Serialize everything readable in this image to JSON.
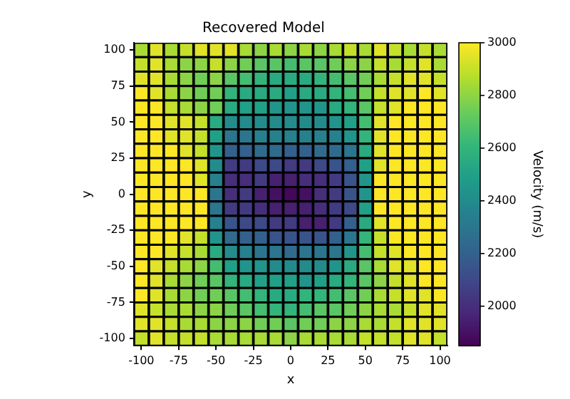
{
  "chart_data": {
    "type": "scatter",
    "title": "Recovered Model",
    "xlabel": "x",
    "ylabel": "y",
    "clabel": "Velocity (m/s)",
    "marker": "square",
    "xlim": [
      -105,
      105
    ],
    "xticks": [
      -100,
      -75,
      -50,
      -25,
      0,
      25,
      50,
      75,
      100
    ],
    "ylim": [
      -105,
      105
    ],
    "yticks": [
      -100,
      -75,
      -50,
      -25,
      0,
      25,
      50,
      75,
      100
    ],
    "clim": [
      1850,
      3000
    ],
    "cticks": [
      2000,
      2200,
      2400,
      2600,
      2800,
      3000
    ],
    "x": [
      -100,
      -90,
      -80,
      -70,
      -60,
      -50,
      -40,
      -30,
      -20,
      -10,
      0,
      10,
      20,
      30,
      40,
      50,
      60,
      70,
      80,
      90,
      100,
      -100,
      -90,
      -80,
      -70,
      -60,
      -50,
      -40,
      -30,
      -20,
      -10,
      0,
      10,
      20,
      30,
      40,
      50,
      60,
      70,
      80,
      90,
      100,
      -100,
      -90,
      -80,
      -70,
      -60,
      -50,
      -40,
      -30,
      -20,
      -10,
      0,
      10,
      20,
      30,
      40,
      50,
      60,
      70,
      80,
      90,
      100,
      -100,
      -90,
      -80,
      -70,
      -60,
      -50,
      -40,
      -30,
      -20,
      -10,
      0,
      10,
      20,
      30,
      40,
      50,
      60,
      70,
      80,
      90,
      100,
      -100,
      -90,
      -80,
      -70,
      -60,
      -50,
      -40,
      -30,
      -20,
      -10,
      0,
      10,
      20,
      30,
      40,
      50,
      60,
      70,
      80,
      90,
      100,
      -100,
      -90,
      -80,
      -70,
      -60,
      -50,
      -40,
      -30,
      -20,
      -10,
      0,
      10,
      20,
      30,
      40,
      50,
      60,
      70,
      80,
      90,
      100,
      -100,
      -90,
      -80,
      -70,
      -60,
      -50,
      -40,
      -30,
      -20,
      -10,
      0,
      10,
      20,
      30,
      40,
      50,
      60,
      70,
      80,
      90,
      100,
      -100,
      -90,
      -80,
      -70,
      -60,
      -50,
      -40,
      -30,
      -20,
      -10,
      0,
      10,
      20,
      30,
      40,
      50,
      60,
      70,
      80,
      90,
      100,
      -100,
      -90,
      -80,
      -70,
      -60,
      -50,
      -40,
      -30,
      -20,
      -10,
      0,
      10,
      20,
      30,
      40,
      50,
      60,
      70,
      80,
      90,
      100,
      -100,
      -90,
      -80,
      -70,
      -60,
      -50,
      -40,
      -30,
      -20,
      -10,
      0,
      10,
      20,
      30,
      40,
      50,
      60,
      70,
      80,
      90,
      100,
      -100,
      -90,
      -80,
      -70,
      -60,
      -50,
      -40,
      -30,
      -20,
      -10,
      0,
      10,
      20,
      30,
      40,
      50,
      60,
      70,
      80,
      90,
      100,
      -100,
      -90,
      -80,
      -70,
      -60,
      -50,
      -40,
      -30,
      -20,
      -10,
      0,
      10,
      20,
      30,
      40,
      50,
      60,
      70,
      80,
      90,
      100,
      -100,
      -90,
      -80,
      -70,
      -60,
      -50,
      -40,
      -30,
      -20,
      -10,
      0,
      10,
      20,
      30,
      40,
      50,
      60,
      70,
      80,
      90,
      100,
      -100,
      -90,
      -80,
      -70,
      -60,
      -50,
      -40,
      -30,
      -20,
      -10,
      0,
      10,
      20,
      30,
      40,
      50,
      60,
      70,
      80,
      90,
      100,
      -100,
      -90,
      -80,
      -70,
      -60,
      -50,
      -40,
      -30,
      -20,
      -10,
      0,
      10,
      20,
      30,
      40,
      50,
      60,
      70,
      80,
      90,
      100,
      -100,
      -90,
      -80,
      -70,
      -60,
      -50,
      -40,
      -30,
      -20,
      -10,
      0,
      10,
      20,
      30,
      40,
      50,
      60,
      70,
      80,
      90,
      100,
      -100,
      -90,
      -80,
      -70,
      -60,
      -50,
      -40,
      -30,
      -20,
      -10,
      0,
      10,
      20,
      30,
      40,
      50,
      60,
      70,
      80,
      90,
      100,
      -100,
      -90,
      -80,
      -70,
      -60,
      -50,
      -40,
      -30,
      -20,
      -10,
      0,
      10,
      20,
      30,
      40,
      50,
      60,
      70,
      80,
      90,
      100,
      -100,
      -90,
      -80,
      -70,
      -60,
      -50,
      -40,
      -30,
      -20,
      -10,
      0,
      10,
      20,
      30,
      40,
      50,
      60,
      70,
      80,
      90,
      100,
      -100,
      -90,
      -80,
      -70,
      -60,
      -50,
      -40,
      -30,
      -20,
      -10,
      0,
      10,
      20,
      30,
      40,
      50,
      60,
      70,
      80,
      90,
      100,
      -100,
      -90,
      -80,
      -70,
      -60,
      -50,
      -40,
      -30,
      -20,
      -10,
      0,
      10,
      20,
      30,
      40,
      50,
      60,
      70,
      80,
      90,
      100
    ],
    "values": [
      100,
      100,
      100,
      100,
      100,
      100,
      100,
      100,
      100,
      100,
      100,
      100,
      100,
      100,
      100,
      100,
      100,
      100,
      100,
      100,
      100,
      90,
      90,
      90,
      90,
      90,
      90,
      90,
      90,
      90,
      90,
      90,
      90,
      90,
      90,
      90,
      90,
      90,
      90,
      90,
      90,
      90,
      80,
      80,
      80,
      80,
      80,
      80,
      80,
      80,
      80,
      80,
      80,
      80,
      80,
      80,
      80,
      80,
      80,
      80,
      80,
      80,
      80,
      70,
      70,
      70,
      70,
      70,
      70,
      70,
      70,
      70,
      70,
      70,
      70,
      70,
      70,
      70,
      70,
      70,
      70,
      70,
      70,
      70,
      60,
      60,
      60,
      60,
      60,
      60,
      60,
      60,
      60,
      60,
      60,
      60,
      60,
      60,
      60,
      60,
      60,
      60,
      60,
      60,
      60,
      50,
      50,
      50,
      50,
      50,
      50,
      50,
      50,
      50,
      50,
      50,
      50,
      50,
      50,
      50,
      50,
      50,
      50,
      50,
      50,
      50,
      40,
      40,
      40,
      40,
      40,
      40,
      40,
      40,
      40,
      40,
      40,
      40,
      40,
      40,
      40,
      40,
      40,
      40,
      40,
      40,
      40,
      30,
      30,
      30,
      30,
      30,
      30,
      30,
      30,
      30,
      30,
      30,
      30,
      30,
      30,
      30,
      30,
      30,
      30,
      30,
      30,
      30,
      20,
      20,
      20,
      20,
      20,
      20,
      20,
      20,
      20,
      20,
      20,
      20,
      20,
      20,
      20,
      20,
      20,
      20,
      20,
      20,
      20,
      10,
      10,
      10,
      10,
      10,
      10,
      10,
      10,
      10,
      10,
      10,
      10,
      10,
      10,
      10,
      10,
      10,
      10,
      10,
      10,
      10,
      0,
      0,
      0,
      0,
      0,
      0,
      0,
      0,
      0,
      0,
      0,
      0,
      0,
      0,
      0,
      0,
      0,
      0,
      0,
      0,
      0,
      -10,
      -10,
      -10,
      -10,
      -10,
      -10,
      -10,
      -10,
      -10,
      -10,
      -10,
      -10,
      -10,
      -10,
      -10,
      -10,
      -10,
      -10,
      -10,
      -10,
      -10,
      -20,
      -20,
      -20,
      -20,
      -20,
      -20,
      -20,
      -20,
      -20,
      -20,
      -20,
      -20,
      -20,
      -20,
      -20,
      -20,
      -20,
      -20,
      -20,
      -20,
      -20,
      -30,
      -30,
      -30,
      -30,
      -30,
      -30,
      -30,
      -30,
      -30,
      -30,
      -30,
      -30,
      -30,
      -30,
      -30,
      -30,
      -30,
      -30,
      -30,
      -30,
      -30,
      -40,
      -40,
      -40,
      -40,
      -40,
      -40,
      -40,
      -40,
      -40,
      -40,
      -40,
      -40,
      -40,
      -40,
      -40,
      -40,
      -40,
      -40,
      -40,
      -40,
      -40,
      -50,
      -50,
      -50,
      -50,
      -50,
      -50,
      -50,
      -50,
      -50,
      -50,
      -50,
      -50,
      -50,
      -50,
      -50,
      -50,
      -50,
      -50,
      -50,
      -50,
      -50,
      -60,
      -60,
      -60,
      -60,
      -60,
      -60,
      -60,
      -60,
      -60,
      -60,
      -60,
      -60,
      -60,
      -60,
      -60,
      -60,
      -60,
      -60,
      -60,
      -60,
      -60,
      -70,
      -70,
      -70,
      -70,
      -70,
      -70,
      -70,
      -70,
      -70,
      -70,
      -70,
      -70,
      -70,
      -70,
      -70,
      -70,
      -70,
      -70,
      -70,
      -70,
      -70,
      -80,
      -80,
      -80,
      -80,
      -80,
      -80,
      -80,
      -80,
      -80,
      -80,
      -80,
      -80,
      -80,
      -80,
      -80,
      -80,
      -80,
      -80,
      -80,
      -80,
      -80,
      -90,
      -90,
      -90,
      -90,
      -90,
      -90,
      -90,
      -90,
      -90,
      -90,
      -90,
      -90,
      -90,
      -90,
      -90,
      -90,
      -90,
      -90,
      -90,
      -90,
      -90,
      -100,
      -100,
      -100,
      -100,
      -100,
      -100,
      -100,
      -100,
      -100,
      -100,
      -100,
      -100,
      -100,
      -100,
      -100,
      -100,
      -100,
      -100,
      -100,
      -100,
      -100
    ],
    "cvalues": [
      2850,
      2950,
      2850,
      2900,
      2950,
      2950,
      2950,
      2850,
      2800,
      2850,
      2800,
      2850,
      2800,
      2850,
      2900,
      2850,
      2950,
      2900,
      2850,
      2900,
      2850,
      2900,
      2950,
      2850,
      2800,
      2800,
      2900,
      2800,
      2750,
      2700,
      2700,
      2650,
      2700,
      2700,
      2750,
      2800,
      2800,
      2900,
      2850,
      2900,
      2950,
      2850,
      2950,
      2950,
      2850,
      2800,
      2750,
      2800,
      2700,
      2650,
      2600,
      2550,
      2550,
      2550,
      2600,
      2650,
      2700,
      2750,
      2850,
      2900,
      2950,
      2950,
      2900,
      3000,
      2950,
      2850,
      2800,
      2750,
      2750,
      2600,
      2550,
      2550,
      2550,
      2500,
      2550,
      2550,
      2600,
      2650,
      2750,
      2900,
      2950,
      2950,
      3000,
      2950,
      3000,
      3000,
      2900,
      2850,
      2800,
      2750,
      2550,
      2500,
      2500,
      2450,
      2450,
      2450,
      2450,
      2550,
      2600,
      2700,
      2900,
      2950,
      3000,
      3000,
      3000,
      3000,
      3000,
      2950,
      2950,
      2900,
      2550,
      2400,
      2400,
      2400,
      2400,
      2400,
      2400,
      2400,
      2450,
      2500,
      2650,
      2950,
      3000,
      3000,
      3000,
      3000,
      3000,
      3000,
      2950,
      2950,
      2900,
      2500,
      2300,
      2300,
      2350,
      2350,
      2350,
      2350,
      2350,
      2350,
      2450,
      2600,
      2950,
      3000,
      3000,
      3000,
      3000,
      3000,
      3000,
      3000,
      2950,
      2900,
      2450,
      2200,
      2200,
      2250,
      2250,
      2200,
      2200,
      2250,
      2250,
      2300,
      2550,
      2950,
      3000,
      3000,
      3000,
      3000,
      3000,
      3000,
      3000,
      3000,
      2950,
      2400,
      2050,
      2050,
      2100,
      2100,
      2050,
      2050,
      2100,
      2150,
      2200,
      2500,
      2950,
      3000,
      3000,
      3000,
      3000,
      3000,
      3000,
      3000,
      3000,
      2950,
      2350,
      2000,
      2000,
      2050,
      1950,
      1950,
      2000,
      2000,
      2050,
      2150,
      2450,
      3000,
      3000,
      3000,
      3000,
      3000,
      3000,
      3000,
      3000,
      3000,
      3000,
      2300,
      2000,
      2050,
      1950,
      1900,
      1870,
      1900,
      2000,
      2050,
      2150,
      2450,
      3000,
      3000,
      3000,
      3000,
      3000,
      3000,
      3000,
      3000,
      3000,
      3000,
      2300,
      2050,
      2050,
      2000,
      1950,
      1950,
      1950,
      2000,
      2050,
      2100,
      2500,
      3000,
      3000,
      3000,
      3000,
      3000,
      3000,
      3000,
      3000,
      3000,
      3000,
      2350,
      2150,
      2100,
      2100,
      2050,
      2050,
      1950,
      1950,
      2050,
      2200,
      2550,
      2950,
      3000,
      3000,
      3000,
      3000,
      3000,
      3000,
      3000,
      2950,
      2900,
      2450,
      2250,
      2200,
      2200,
      2150,
      2150,
      2150,
      2150,
      2200,
      2300,
      2600,
      2900,
      3000,
      3000,
      3000,
      3000,
      3000,
      3000,
      2950,
      2900,
      2850,
      2550,
      2400,
      2350,
      2300,
      2300,
      2250,
      2300,
      2300,
      2300,
      2450,
      2650,
      2900,
      2950,
      3000,
      3000,
      3000,
      3000,
      2950,
      2900,
      2850,
      2800,
      2650,
      2500,
      2450,
      2450,
      2400,
      2400,
      2400,
      2400,
      2450,
      2550,
      2700,
      2850,
      2950,
      2950,
      3000,
      3000,
      3000,
      2950,
      2850,
      2800,
      2750,
      2700,
      2600,
      2550,
      2500,
      2500,
      2500,
      2450,
      2500,
      2550,
      2600,
      2700,
      2800,
      2900,
      2950,
      3000,
      3000,
      3000,
      2950,
      2850,
      2800,
      2750,
      2750,
      2700,
      2650,
      2600,
      2550,
      2550,
      2600,
      2600,
      2650,
      2700,
      2750,
      2850,
      2900,
      2950,
      2950,
      3000,
      2950,
      2900,
      2850,
      2850,
      2800,
      2800,
      2750,
      2700,
      2650,
      2600,
      2600,
      2650,
      2700,
      2700,
      2750,
      2800,
      2850,
      2850,
      2900,
      2950,
      2950,
      2950,
      2950,
      2900,
      2850,
      2850,
      2800,
      2800,
      2800,
      2750,
      2750,
      2700,
      2750,
      2750,
      2800,
      2800,
      2850,
      2850,
      2900,
      2950,
      2950,
      2950,
      2900,
      2950,
      2900,
      2900,
      2900,
      2850,
      2850,
      2850,
      2850,
      2850,
      2800,
      2850,
      2850,
      2850,
      2850,
      2900,
      2900,
      2900,
      2950,
      2950,
      2900
    ]
  }
}
